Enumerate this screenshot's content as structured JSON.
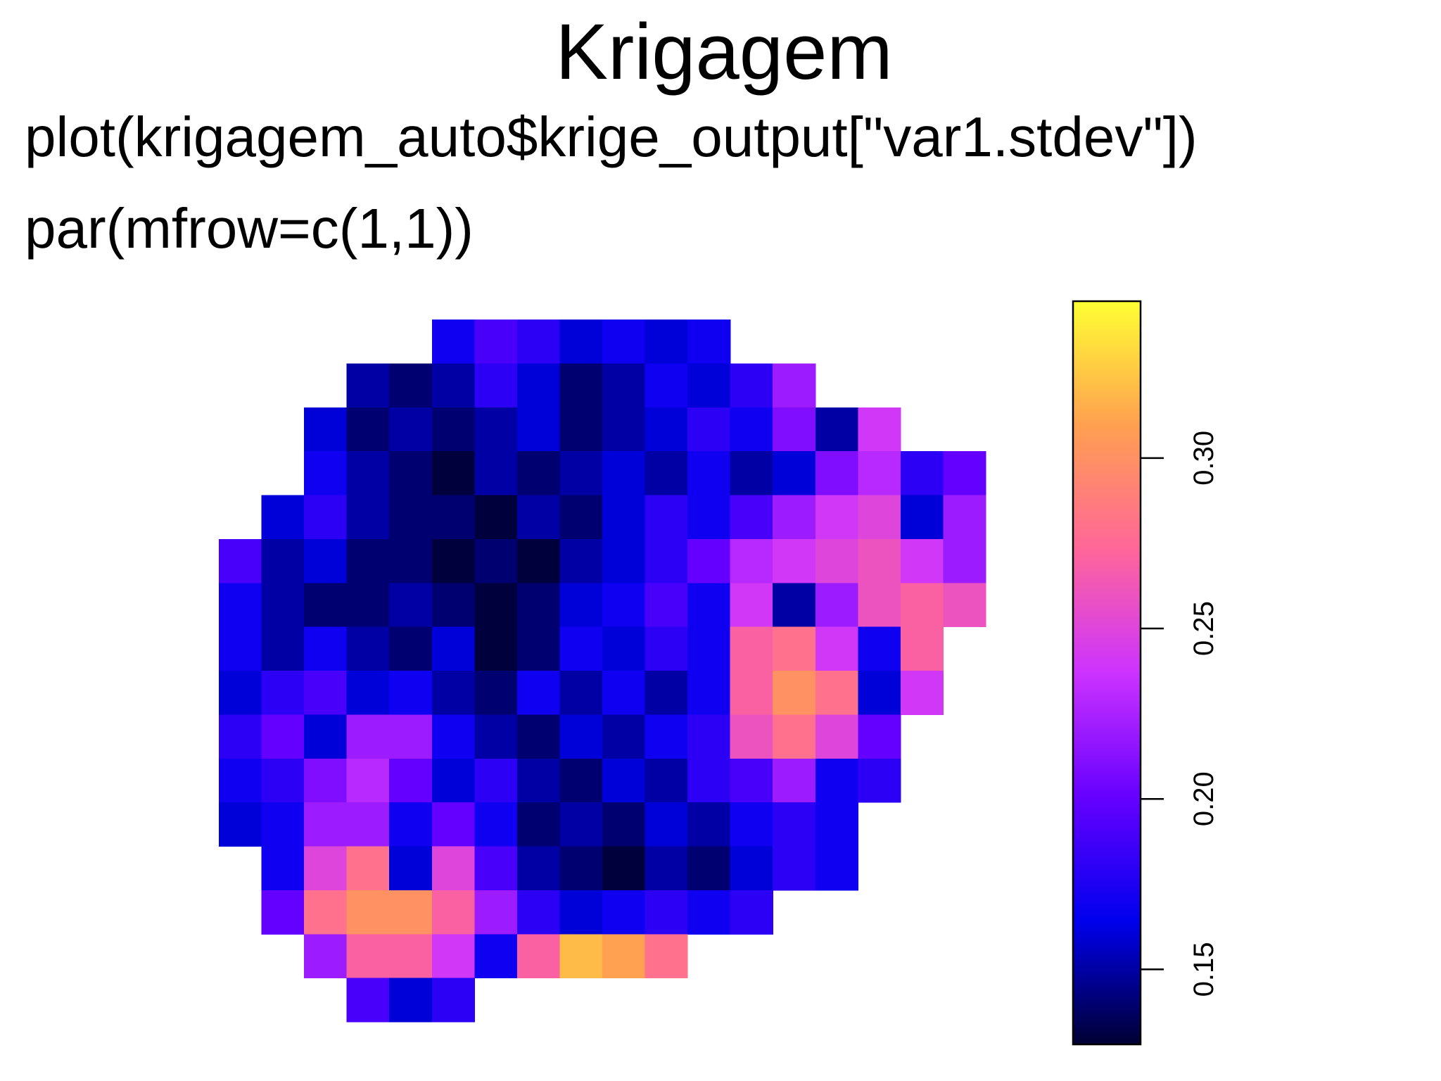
{
  "header": {
    "title": "Krigagem",
    "lines": [
      "plot(krigagem_auto$krige_output[\"var1.stdev\"])",
      "par(mfrow=c(1,1))"
    ]
  },
  "chart_data": {
    "type": "heatmap",
    "z": [
      [
        null,
        null,
        null,
        null,
        null,
        0.17,
        0.19,
        0.18,
        0.16,
        0.17,
        0.16,
        0.17,
        null,
        null,
        null,
        null,
        null,
        null
      ],
      [
        null,
        null,
        null,
        0.15,
        0.14,
        0.15,
        0.18,
        0.16,
        0.14,
        0.15,
        0.17,
        0.16,
        0.18,
        0.22,
        null,
        null,
        null,
        null
      ],
      [
        null,
        null,
        0.16,
        0.14,
        0.15,
        0.14,
        0.15,
        0.16,
        0.14,
        0.15,
        0.16,
        0.18,
        0.17,
        0.21,
        0.15,
        0.24,
        null,
        null
      ],
      [
        null,
        null,
        0.17,
        0.15,
        0.14,
        0.13,
        0.15,
        0.14,
        0.15,
        0.16,
        0.15,
        0.17,
        0.15,
        0.16,
        0.21,
        0.23,
        0.18,
        0.2
      ],
      [
        null,
        0.16,
        0.18,
        0.15,
        0.14,
        0.14,
        0.13,
        0.15,
        0.14,
        0.16,
        0.18,
        0.17,
        0.19,
        0.22,
        0.24,
        0.25,
        0.16,
        0.22
      ],
      [
        0.19,
        0.15,
        0.16,
        0.14,
        0.14,
        0.13,
        0.14,
        0.13,
        0.15,
        0.16,
        0.18,
        0.2,
        0.23,
        0.24,
        0.25,
        0.26,
        0.24,
        0.22
      ],
      [
        0.17,
        0.15,
        0.14,
        0.14,
        0.15,
        0.14,
        0.13,
        0.14,
        0.16,
        0.17,
        0.19,
        0.17,
        0.24,
        0.15,
        0.22,
        0.26,
        0.27,
        0.26
      ],
      [
        0.17,
        0.15,
        0.17,
        0.15,
        0.14,
        0.16,
        0.13,
        0.14,
        0.17,
        0.16,
        0.18,
        0.17,
        0.27,
        0.28,
        0.24,
        0.17,
        0.27,
        null
      ],
      [
        0.16,
        0.18,
        0.19,
        0.16,
        0.17,
        0.15,
        0.14,
        0.17,
        0.15,
        0.17,
        0.15,
        0.17,
        0.27,
        0.3,
        0.28,
        0.16,
        0.24,
        null
      ],
      [
        0.18,
        0.2,
        0.16,
        0.22,
        0.22,
        0.17,
        0.15,
        0.14,
        0.16,
        0.15,
        0.17,
        0.18,
        0.26,
        0.28,
        0.25,
        0.2,
        null,
        null
      ],
      [
        0.17,
        0.18,
        0.21,
        0.23,
        0.2,
        0.16,
        0.18,
        0.15,
        0.14,
        0.16,
        0.15,
        0.18,
        0.19,
        0.22,
        0.17,
        0.18,
        null,
        null
      ],
      [
        0.16,
        0.17,
        0.22,
        0.22,
        0.17,
        0.2,
        0.17,
        0.14,
        0.15,
        0.14,
        0.16,
        0.15,
        0.17,
        0.18,
        0.17,
        null,
        null,
        null
      ],
      [
        null,
        0.17,
        0.25,
        0.28,
        0.16,
        0.25,
        0.19,
        0.15,
        0.14,
        0.13,
        0.15,
        0.14,
        0.16,
        0.18,
        0.17,
        null,
        null,
        null
      ],
      [
        null,
        0.2,
        0.28,
        0.3,
        0.3,
        0.27,
        0.22,
        0.18,
        0.16,
        0.17,
        0.18,
        0.17,
        0.18,
        null,
        null,
        null,
        null,
        null
      ],
      [
        null,
        null,
        0.22,
        0.27,
        0.27,
        0.24,
        0.17,
        0.27,
        0.32,
        0.31,
        0.28,
        null,
        null,
        null,
        null,
        null,
        null,
        null
      ],
      [
        null,
        null,
        null,
        0.19,
        0.16,
        0.18,
        null,
        null,
        null,
        null,
        null,
        null,
        null,
        null,
        null,
        null,
        null,
        null
      ]
    ],
    "zlim": [
      0.128,
      0.346
    ],
    "zticks": [
      0.15,
      {
        "value": 0.2,
        "label": "0.20"
      },
      0.25,
      {
        "value": 0.3,
        "label": "0.30"
      }
    ],
    "colors": [
      "#000033",
      "#0000ee",
      "#6600ff",
      "#cc33ff",
      "#ff6699",
      "#ffa050",
      "#ffff33"
    ]
  }
}
